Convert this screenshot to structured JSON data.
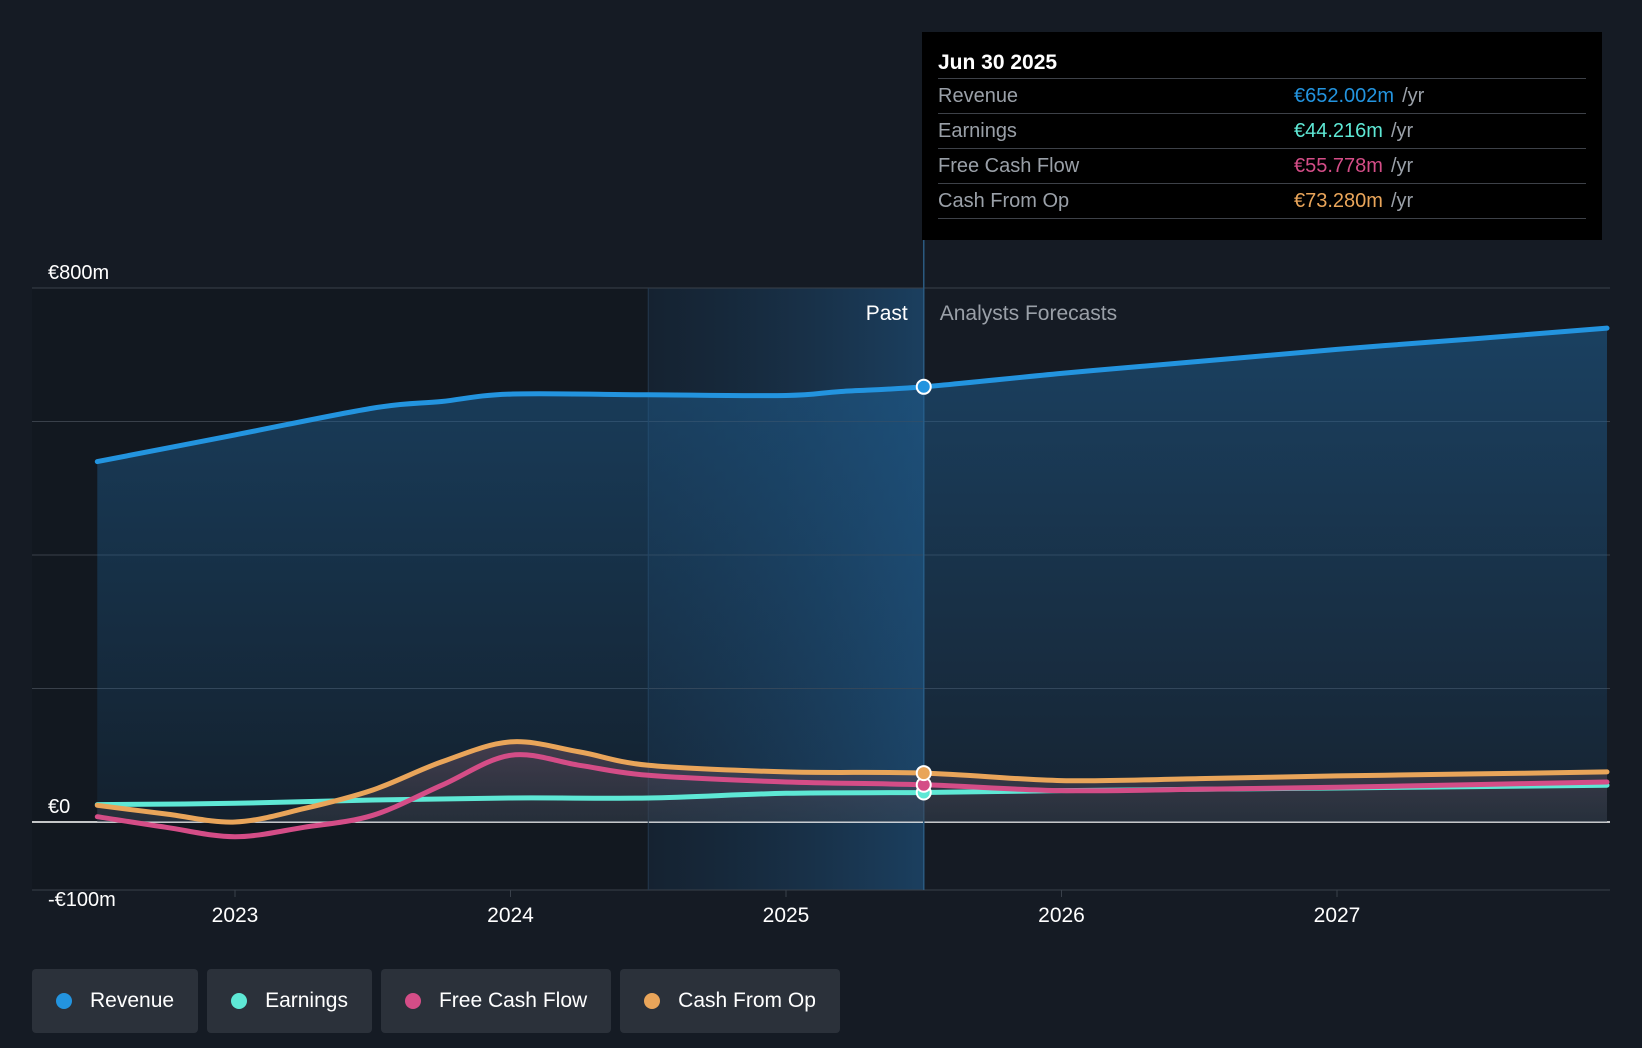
{
  "chart_data": {
    "type": "line",
    "y_axis": {
      "min": -100,
      "max": 800,
      "labels": [
        "€800m",
        "€0",
        "-€100m"
      ],
      "grid_values": [
        800,
        600,
        400,
        200,
        0
      ]
    },
    "x_axis": {
      "ticks": [
        2023,
        2024,
        2025,
        2026,
        2027
      ],
      "labels": [
        "2023",
        "2024",
        "2025",
        "2026",
        "2027"
      ],
      "range": [
        2022.5,
        2027.98
      ]
    },
    "regions": {
      "past_label": "Past",
      "forecast_label": "Analysts Forecasts",
      "highlight_start": 2024.5,
      "divider": 2025.5
    },
    "series": [
      {
        "name": "Revenue",
        "key": "revenue",
        "color": "#2394df",
        "points": [
          [
            2022.5,
            540
          ],
          [
            2023.0,
            580
          ],
          [
            2023.5,
            620
          ],
          [
            2023.75,
            630
          ],
          [
            2024.0,
            641
          ],
          [
            2024.5,
            640
          ],
          [
            2025.0,
            639
          ],
          [
            2025.2,
            645
          ],
          [
            2025.5,
            652
          ],
          [
            2026.0,
            672
          ],
          [
            2026.5,
            690
          ],
          [
            2027.0,
            708
          ],
          [
            2027.5,
            724
          ],
          [
            2027.98,
            740
          ]
        ]
      },
      {
        "name": "Earnings",
        "key": "earnings",
        "color": "#5ee8d5",
        "points": [
          [
            2022.5,
            26
          ],
          [
            2023.0,
            28
          ],
          [
            2023.5,
            33
          ],
          [
            2024.0,
            36
          ],
          [
            2024.5,
            36
          ],
          [
            2025.0,
            43
          ],
          [
            2025.5,
            44.216
          ],
          [
            2026.0,
            47
          ],
          [
            2026.5,
            49
          ],
          [
            2027.0,
            51
          ],
          [
            2027.5,
            53
          ],
          [
            2027.98,
            55
          ]
        ]
      },
      {
        "name": "Free Cash Flow",
        "key": "fcf",
        "color": "#d44d87",
        "points": [
          [
            2022.5,
            8
          ],
          [
            2022.75,
            -8
          ],
          [
            2023.0,
            -22
          ],
          [
            2023.25,
            -8
          ],
          [
            2023.5,
            10
          ],
          [
            2023.75,
            55
          ],
          [
            2024.0,
            100
          ],
          [
            2024.25,
            85
          ],
          [
            2024.5,
            70
          ],
          [
            2025.0,
            60
          ],
          [
            2025.5,
            55.778
          ],
          [
            2026.0,
            47
          ],
          [
            2026.5,
            49
          ],
          [
            2027.0,
            52
          ],
          [
            2027.5,
            56
          ],
          [
            2027.98,
            60
          ]
        ]
      },
      {
        "name": "Cash From Op",
        "key": "cfo",
        "color": "#e9a55a",
        "points": [
          [
            2022.5,
            25
          ],
          [
            2022.75,
            12
          ],
          [
            2023.0,
            0
          ],
          [
            2023.25,
            20
          ],
          [
            2023.5,
            48
          ],
          [
            2023.75,
            90
          ],
          [
            2024.0,
            120
          ],
          [
            2024.25,
            105
          ],
          [
            2024.5,
            85
          ],
          [
            2025.0,
            75
          ],
          [
            2025.5,
            73.28
          ],
          [
            2026.0,
            62
          ],
          [
            2026.5,
            65
          ],
          [
            2027.0,
            69
          ],
          [
            2027.5,
            72
          ],
          [
            2027.98,
            75
          ]
        ]
      }
    ]
  },
  "tooltip": {
    "date": "Jun 30 2025",
    "unit": "/yr",
    "rows": [
      {
        "label": "Revenue",
        "value": "€652.002m",
        "color": "#2394df"
      },
      {
        "label": "Earnings",
        "value": "€44.216m",
        "color": "#5ee8d5"
      },
      {
        "label": "Free Cash Flow",
        "value": "€55.778m",
        "color": "#d44d87"
      },
      {
        "label": "Cash From Op",
        "value": "€73.280m",
        "color": "#e9a55a"
      }
    ]
  },
  "legend": [
    {
      "label": "Revenue",
      "color": "#2394df"
    },
    {
      "label": "Earnings",
      "color": "#5ee8d5"
    },
    {
      "label": "Free Cash Flow",
      "color": "#d44d87"
    },
    {
      "label": "Cash From Op",
      "color": "#e9a55a"
    }
  ]
}
